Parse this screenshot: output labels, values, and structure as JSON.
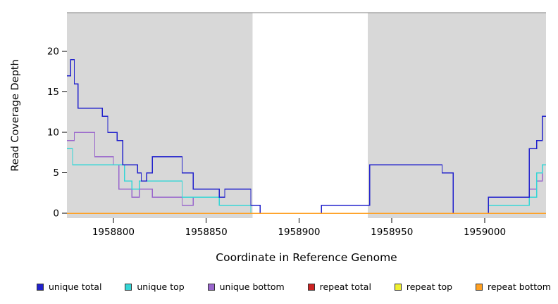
{
  "chart_data": {
    "type": "line",
    "step": true,
    "title": "",
    "xlabel": "Coordinate in Reference Genome",
    "ylabel": "Read Coverage Depth",
    "xlim": [
      1958775,
      1959033
    ],
    "ylim": [
      -0.6,
      24.8
    ],
    "x_ticks": [
      1958800,
      1958850,
      1958900,
      1958950,
      1959000
    ],
    "y_ticks": [
      0,
      5,
      10,
      15,
      20
    ],
    "grid": false,
    "legend_position": "bottom",
    "plot_bg": "#d8d8d8",
    "plot_top_border_color": "#808080",
    "highlight_region": {
      "x0": 1958875,
      "x1": 1958937,
      "color": "#ffffff"
    },
    "draw_order": [
      3,
      4,
      2,
      1,
      0,
      5
    ],
    "series": [
      {
        "name": "unique total",
        "color": "#2222cc",
        "points": [
          [
            1958775,
            17
          ],
          [
            1958777,
            19
          ],
          [
            1958779,
            16
          ],
          [
            1958781,
            13
          ],
          [
            1958794,
            12
          ],
          [
            1958797,
            10
          ],
          [
            1958802,
            9
          ],
          [
            1958805,
            6
          ],
          [
            1958813,
            5
          ],
          [
            1958815,
            4
          ],
          [
            1958818,
            5
          ],
          [
            1958821,
            7
          ],
          [
            1958837,
            5
          ],
          [
            1958843,
            3
          ],
          [
            1958857,
            2
          ],
          [
            1958860,
            3
          ],
          [
            1958874,
            1
          ],
          [
            1958879,
            0
          ],
          [
            1958912,
            1
          ],
          [
            1958938,
            6
          ],
          [
            1958977,
            5
          ],
          [
            1958983,
            0
          ],
          [
            1959002,
            2
          ],
          [
            1959024,
            8
          ],
          [
            1959028,
            9
          ],
          [
            1959031,
            12
          ]
        ]
      },
      {
        "name": "unique top",
        "color": "#35d6d6",
        "points": [
          [
            1958775,
            8
          ],
          [
            1958778,
            6
          ],
          [
            1958806,
            4
          ],
          [
            1958810,
            3
          ],
          [
            1958814,
            4
          ],
          [
            1958837,
            2
          ],
          [
            1958857,
            1
          ],
          [
            1958874,
            0
          ],
          [
            1959002,
            1
          ],
          [
            1959024,
            2
          ],
          [
            1959028,
            5
          ],
          [
            1959031,
            6
          ]
        ]
      },
      {
        "name": "unique bottom",
        "color": "#9966cc",
        "points": [
          [
            1958775,
            9
          ],
          [
            1958779,
            10
          ],
          [
            1958790,
            7
          ],
          [
            1958800,
            6
          ],
          [
            1958803,
            3
          ],
          [
            1958810,
            2
          ],
          [
            1958814,
            3
          ],
          [
            1958821,
            2
          ],
          [
            1958837,
            1
          ],
          [
            1958843,
            2
          ],
          [
            1958857,
            1
          ],
          [
            1958874,
            0
          ],
          [
            1959002,
            1
          ],
          [
            1959024,
            3
          ],
          [
            1959028,
            4
          ],
          [
            1959031,
            6
          ]
        ]
      },
      {
        "name": "repeat total",
        "color": "#cc2222",
        "points": [
          [
            1958775,
            0
          ]
        ]
      },
      {
        "name": "repeat top",
        "color": "#f0f030",
        "points": [
          [
            1958775,
            0
          ]
        ]
      },
      {
        "name": "repeat bottom",
        "color": "#ffa022",
        "points": [
          [
            1958775,
            0
          ]
        ]
      }
    ]
  }
}
